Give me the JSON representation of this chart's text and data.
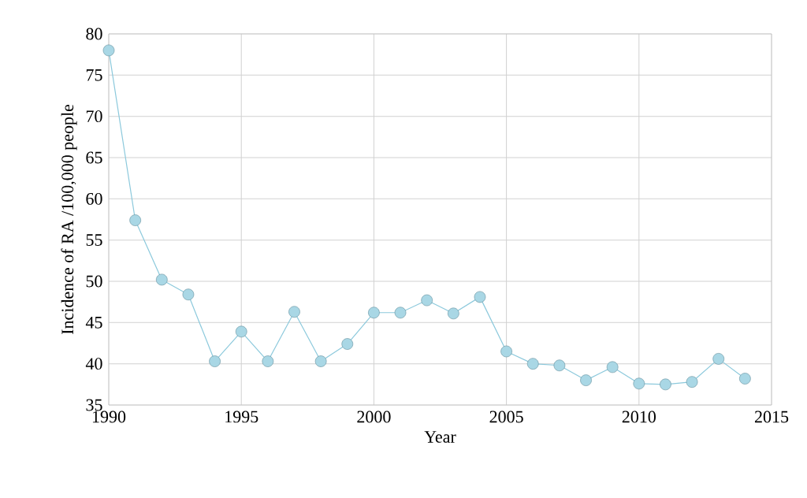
{
  "chart_data": {
    "type": "line",
    "xlabel": "Year",
    "ylabel": "Incidence of RA /100,000 people",
    "x": [
      1990,
      1991,
      1992,
      1993,
      1994,
      1995,
      1996,
      1997,
      1998,
      1999,
      2000,
      2001,
      2002,
      2003,
      2004,
      2005,
      2006,
      2007,
      2008,
      2009,
      2010,
      2011,
      2012,
      2013,
      2014
    ],
    "series": [
      {
        "color": "#8cc9dc",
        "values": [
          78.0,
          57.4,
          50.2,
          48.4,
          40.3,
          43.9,
          40.3,
          46.3,
          40.3,
          42.4,
          46.2,
          46.2,
          47.7,
          46.1,
          48.1,
          41.5,
          40.0,
          39.8,
          38.0,
          39.6,
          37.6,
          37.5,
          37.8,
          40.6,
          38.2
        ]
      }
    ],
    "xlim": [
      1990,
      2015
    ],
    "xticks": [
      1990,
      1995,
      2000,
      2005,
      2010,
      2015
    ],
    "ylim": [
      35,
      80
    ],
    "yticks": [
      35,
      40,
      45,
      50,
      55,
      60,
      65,
      70,
      75,
      80
    ],
    "grid": true,
    "marker": "circle",
    "line_style": "solid"
  }
}
